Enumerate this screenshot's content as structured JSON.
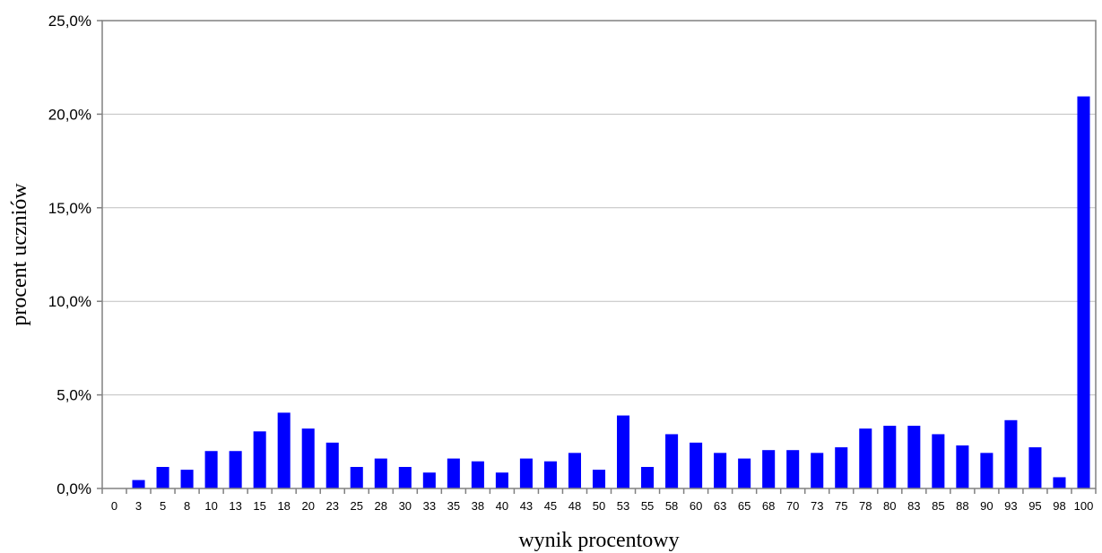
{
  "chart_data": {
    "type": "bar",
    "xlabel": "wynik procentowy",
    "ylabel": "procent uczniów",
    "ylim": [
      0,
      25
    ],
    "y_ticks": [
      0,
      5,
      10,
      15,
      20,
      25
    ],
    "y_tick_labels": [
      "0,0%",
      "5,0%",
      "10,0%",
      "15,0%",
      "20,0%",
      "25,0%"
    ],
    "grid": "horizontal",
    "legend": "none",
    "bar_color": "#0000ff",
    "categories": [
      "0",
      "3",
      "5",
      "8",
      "10",
      "13",
      "15",
      "18",
      "20",
      "23",
      "25",
      "28",
      "30",
      "33",
      "35",
      "38",
      "40",
      "43",
      "45",
      "48",
      "50",
      "53",
      "55",
      "58",
      "60",
      "63",
      "65",
      "68",
      "70",
      "73",
      "75",
      "78",
      "80",
      "83",
      "85",
      "88",
      "90",
      "93",
      "95",
      "98",
      "100"
    ],
    "values": [
      0,
      0.45,
      1.15,
      1.0,
      2.0,
      2.0,
      3.05,
      4.05,
      3.2,
      2.45,
      1.15,
      1.6,
      1.15,
      0.85,
      1.6,
      1.45,
      0.85,
      1.6,
      1.45,
      1.9,
      1.0,
      3.9,
      1.15,
      2.9,
      2.45,
      1.9,
      1.6,
      2.05,
      2.05,
      1.9,
      2.2,
      3.2,
      3.35,
      3.35,
      2.9,
      2.3,
      1.9,
      3.65,
      2.2,
      0.6,
      20.95
    ]
  }
}
